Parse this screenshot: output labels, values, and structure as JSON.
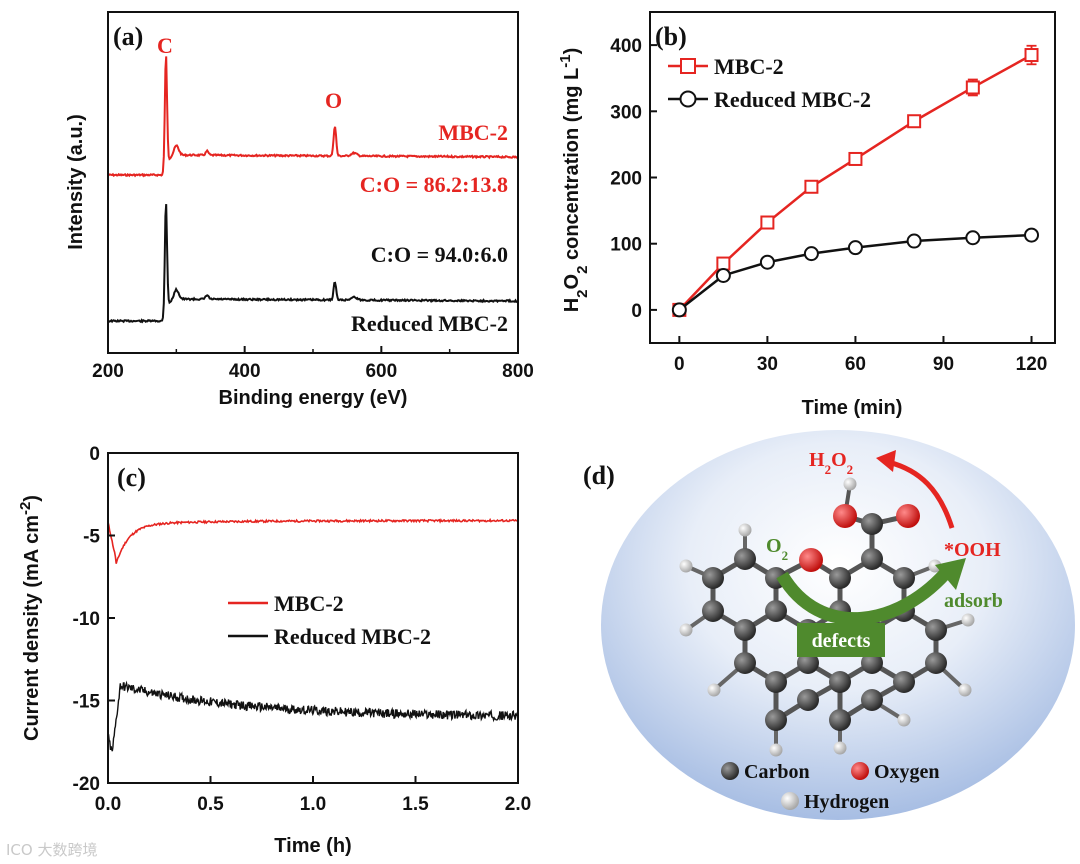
{
  "colors": {
    "red": "#e52521",
    "black": "#111111",
    "green": "#4f8a2d",
    "sphere_blue": "#a9c0e6"
  },
  "watermark": "大数跨境",
  "chart_data": [
    {
      "id": "a",
      "type": "line",
      "panel_label": "(a)",
      "xlabel": "Binding energy (eV)",
      "ylabel": "Intensity (a.u.)",
      "xlim": [
        200,
        800
      ],
      "xticks": [
        200,
        400,
        600,
        800
      ],
      "series": [
        {
          "name": "MBC-2",
          "color": "#e52521",
          "label": "MBC-2",
          "ratio_text": "C:O = 86.2:13.8"
        },
        {
          "name": "Reduced MBC-2",
          "color": "#111111",
          "label": "Reduced MBC-2",
          "ratio_text": "C:O = 94.0:6.0"
        }
      ],
      "peaks": [
        {
          "label": "C",
          "x": 284.8
        },
        {
          "label": "O",
          "x": 532
        }
      ]
    },
    {
      "id": "b",
      "type": "line",
      "panel_label": "(b)",
      "xlabel": "Time (min)",
      "ylabel": "H2O2 concentration (mg L-1)",
      "xlim": [
        -10,
        128
      ],
      "ylim": [
        -50,
        450
      ],
      "xticks": [
        0,
        30,
        60,
        90,
        120
      ],
      "yticks": [
        0,
        100,
        200,
        300,
        400
      ],
      "x": [
        0,
        15,
        30,
        45,
        60,
        80,
        100,
        120
      ],
      "series": [
        {
          "name": "MBC-2",
          "color": "#e52521",
          "marker": "square",
          "values": [
            0,
            70,
            132,
            186,
            228,
            285,
            336,
            385
          ],
          "errors": [
            3,
            6,
            6,
            6,
            6,
            7,
            12,
            14
          ]
        },
        {
          "name": "Reduced MBC-2",
          "color": "#111111",
          "marker": "circle",
          "values": [
            0,
            52,
            72,
            85,
            94,
            104,
            109,
            113
          ],
          "errors": [
            3,
            5,
            5,
            5,
            5,
            5,
            6,
            7
          ]
        }
      ]
    },
    {
      "id": "c",
      "type": "line",
      "panel_label": "(c)",
      "xlabel": "Time (h)",
      "ylabel": "Current density (mA cm-2)",
      "xlim": [
        0,
        2.0
      ],
      "ylim": [
        -20,
        0
      ],
      "xticks": [
        "0.0",
        "0.5",
        "1.0",
        "1.5",
        "2.0"
      ],
      "yticks": [
        "0",
        "-5",
        "-10",
        "-15",
        "-20"
      ],
      "series": [
        {
          "name": "MBC-2",
          "color": "#e52521",
          "steady_value": -4.1,
          "min_value": -6.5
        },
        {
          "name": "Reduced MBC-2",
          "color": "#111111",
          "steady_value": -16.0,
          "peak_value": -14.0,
          "min_value": -18.2
        }
      ]
    }
  ],
  "schematic": {
    "panel_label": "(d)",
    "product": "H2O2",
    "reactant": "O2",
    "intermediate": "*OOH",
    "adsorb_label": "adsorb",
    "defects_label": "defects",
    "legend": {
      "carbon": "Carbon",
      "oxygen": "Oxygen",
      "hydrogen": "Hydrogen"
    }
  }
}
